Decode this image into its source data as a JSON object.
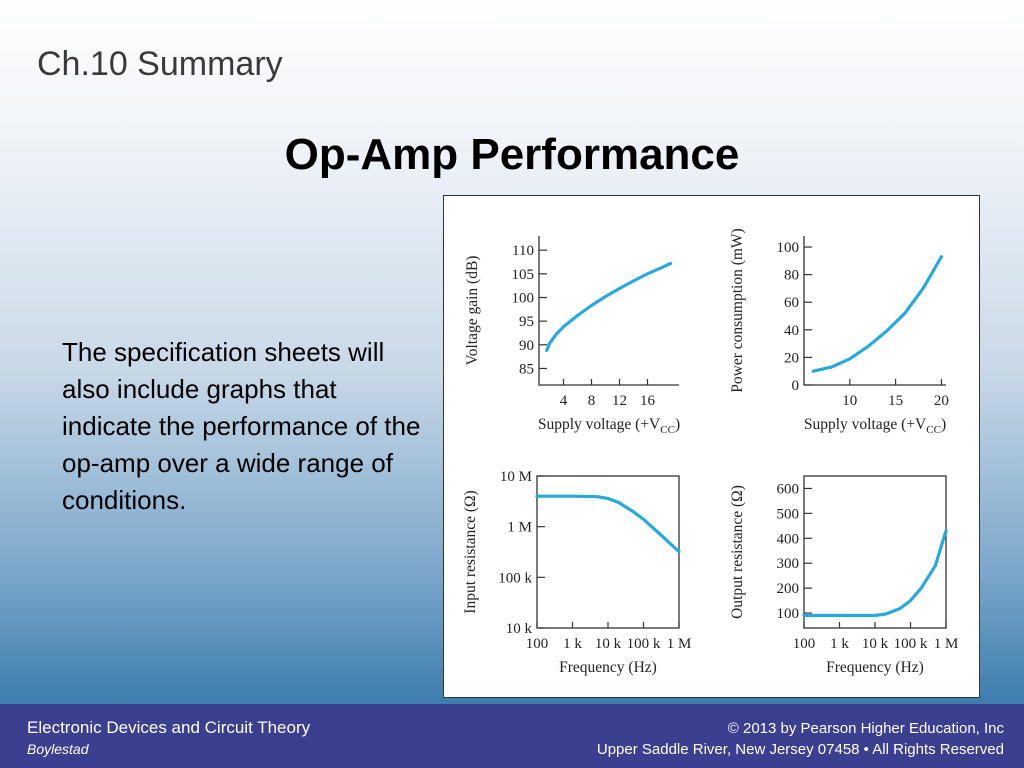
{
  "slide": {
    "section": "Ch.10 Summary",
    "title": "Op-Amp Performance",
    "body": "The specification sheets will also include graphs that indicate the performance of the op-amp over a wide range of conditions."
  },
  "footer": {
    "course": "Electronic Devices and Circuit Theory",
    "author": "Boylestad",
    "copyright": "© 2013 by Pearson Higher Education, Inc",
    "address": "Upper Saddle River, New Jersey 07458 • All Rights Reserved"
  },
  "curve_color": "#29a8dc",
  "chart_data": [
    {
      "id": "gain",
      "type": "line",
      "xlabel": "Supply voltage (+V",
      "xlabel_sub": "CC",
      "xlabel_tail": ")",
      "ylabel": "Voltage gain (dB)",
      "xticks": [
        {
          "v": 4,
          "label": "4"
        },
        {
          "v": 8,
          "label": "8"
        },
        {
          "v": 12,
          "label": "12"
        },
        {
          "v": 16,
          "label": "16"
        }
      ],
      "yticks": [
        {
          "v": 85,
          "label": "85"
        },
        {
          "v": 90,
          "label": "90"
        },
        {
          "v": 95,
          "label": "95"
        },
        {
          "v": 100,
          "label": "100"
        },
        {
          "v": 105,
          "label": "105"
        },
        {
          "v": 110,
          "label": "110"
        }
      ],
      "x": [
        1.6,
        2,
        3,
        4,
        6,
        8,
        10,
        12,
        14,
        16,
        18,
        19.3
      ],
      "y": [
        88.8,
        90.3,
        92.3,
        93.8,
        96.2,
        98.3,
        100.2,
        101.9,
        103.5,
        105.0,
        106.3,
        107.2
      ]
    },
    {
      "id": "power",
      "type": "line",
      "xlabel": "Supply voltage (+V",
      "xlabel_sub": "CC",
      "xlabel_tail": ")",
      "ylabel": "Power consumption (mW)",
      "xticks": [
        {
          "v": 10,
          "label": "10"
        },
        {
          "v": 15,
          "label": "15"
        },
        {
          "v": 20,
          "label": "20"
        }
      ],
      "yticks": [
        {
          "v": 0,
          "label": "0"
        },
        {
          "v": 20,
          "label": "20"
        },
        {
          "v": 40,
          "label": "40"
        },
        {
          "v": 60,
          "label": "60"
        },
        {
          "v": 80,
          "label": "80"
        },
        {
          "v": 100,
          "label": "100"
        }
      ],
      "x": [
        6,
        8,
        10,
        12,
        14,
        16,
        18,
        20
      ],
      "y": [
        10,
        13,
        19,
        28,
        39,
        52,
        70,
        93
      ]
    },
    {
      "id": "rin",
      "type": "line",
      "xlabel": "Frequency (Hz)",
      "ylabel": "Input resistance (Ω)",
      "scale": "log-log",
      "xticks": [
        {
          "v": 100,
          "label": "100"
        },
        {
          "v": 1000,
          "label": "1 k"
        },
        {
          "v": 10000,
          "label": "10 k"
        },
        {
          "v": 100000,
          "label": "100 k"
        },
        {
          "v": 1000000,
          "label": "1 M"
        }
      ],
      "yticks": [
        {
          "v": 10000,
          "label": "10 k"
        },
        {
          "v": 100000,
          "label": "100 k"
        },
        {
          "v": 1000000,
          "label": "1 M"
        },
        {
          "v": 10000000,
          "label": "10 M"
        }
      ],
      "x": [
        100,
        1000,
        5000,
        10000,
        20000,
        50000,
        100000,
        300000,
        1000000
      ],
      "y": [
        4000000,
        4000000,
        3900000,
        3600000,
        3000000,
        2000000,
        1400000,
        700000,
        320000
      ]
    },
    {
      "id": "rout",
      "type": "line",
      "xlabel": "Frequency (Hz)",
      "ylabel": "Output resistance (Ω)",
      "scale": "log-x",
      "xticks": [
        {
          "v": 100,
          "label": "100"
        },
        {
          "v": 1000,
          "label": "1 k"
        },
        {
          "v": 10000,
          "label": "10 k"
        },
        {
          "v": 100000,
          "label": "100 k"
        },
        {
          "v": 1000000,
          "label": "1 M"
        }
      ],
      "yticks": [
        {
          "v": 100,
          "label": "100"
        },
        {
          "v": 200,
          "label": "200"
        },
        {
          "v": 300,
          "label": "300"
        },
        {
          "v": 400,
          "label": "400"
        },
        {
          "v": 500,
          "label": "500"
        },
        {
          "v": 600,
          "label": "600"
        }
      ],
      "x": [
        100,
        1000,
        10000,
        20000,
        50000,
        100000,
        200000,
        500000,
        1000000
      ],
      "y": [
        90,
        90,
        90,
        96,
        118,
        150,
        200,
        290,
        430
      ]
    }
  ]
}
